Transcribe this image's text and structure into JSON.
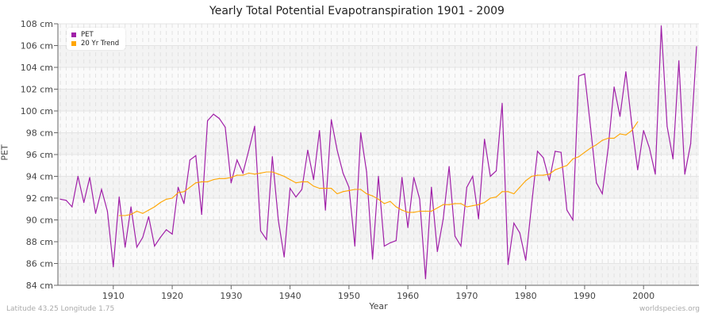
{
  "chart_data": {
    "type": "line",
    "title": "Yearly Total Potential Evapotranspiration 1901 - 2009",
    "xlabel": "Year",
    "ylabel": "PET",
    "y_unit": "cm",
    "ylim": [
      84,
      108
    ],
    "xlim": [
      1901,
      2009
    ],
    "grid": true,
    "legend_position": "top-left",
    "x_ticks": [
      1910,
      1920,
      1930,
      1940,
      1950,
      1960,
      1970,
      1980,
      1990,
      2000
    ],
    "y_ticks": [
      "84 cm",
      "86 cm",
      "88 cm",
      "90 cm",
      "92 cm",
      "94 cm",
      "96 cm",
      "98 cm",
      "100 cm",
      "102 cm",
      "104 cm",
      "106 cm",
      "108 cm"
    ],
    "series": [
      {
        "name": "PET",
        "color": "#a020a8",
        "start_year": 1901,
        "values": [
          91.9,
          91.8,
          91.2,
          94.0,
          91.6,
          93.9,
          90.6,
          92.8,
          90.8,
          85.7,
          92.1,
          87.5,
          91.2,
          87.5,
          88.4,
          90.3,
          87.6,
          88.4,
          89.1,
          88.7,
          93.0,
          91.5,
          95.5,
          95.9,
          90.5,
          99.1,
          99.7,
          99.3,
          98.5,
          93.4,
          95.5,
          94.3,
          96.4,
          98.6,
          89.0,
          88.2,
          95.8,
          90.0,
          86.6,
          92.9,
          92.1,
          92.8,
          96.4,
          93.7,
          98.2,
          90.9,
          99.2,
          96.4,
          94.3,
          93.0,
          87.6,
          98.0,
          94.4,
          86.4,
          94.0,
          87.6,
          87.9,
          88.1,
          93.9,
          89.3,
          93.9,
          91.9,
          84.6,
          93.0,
          87.1,
          90.1,
          94.9,
          88.5,
          87.6,
          93.0,
          94.0,
          90.1,
          97.4,
          94.0,
          94.5,
          100.7,
          85.9,
          89.7,
          88.8,
          86.3,
          91.4,
          96.3,
          95.7,
          93.6,
          96.3,
          96.2,
          90.9,
          90.0,
          103.2,
          103.4,
          98.5,
          93.4,
          92.4,
          96.6,
          102.2,
          99.5,
          103.6,
          98.8,
          94.6,
          98.2,
          96.6,
          94.2,
          107.8,
          98.6,
          95.6,
          104.6,
          94.2,
          97.0,
          105.9
        ]
      },
      {
        "name": "20 Yr Trend",
        "color": "#ffa500",
        "start_year": 1911,
        "values": [
          90.4,
          90.4,
          90.5,
          90.8,
          90.6,
          90.9,
          91.2,
          91.6,
          91.9,
          92.0,
          92.5,
          92.6,
          93.0,
          93.4,
          93.5,
          93.5,
          93.7,
          93.8,
          93.8,
          93.9,
          94.1,
          94.1,
          94.3,
          94.2,
          94.3,
          94.4,
          94.4,
          94.2,
          94.0,
          93.7,
          93.4,
          93.5,
          93.5,
          93.1,
          92.9,
          92.9,
          92.9,
          92.4,
          92.6,
          92.7,
          92.8,
          92.8,
          92.4,
          92.2,
          91.9,
          91.5,
          91.7,
          91.2,
          90.9,
          90.7,
          90.7,
          90.8,
          90.8,
          90.8,
          91.1,
          91.4,
          91.4,
          91.5,
          91.5,
          91.2,
          91.3,
          91.4,
          91.6,
          92.0,
          92.1,
          92.6,
          92.6,
          92.4,
          93.0,
          93.6,
          94.0,
          94.1,
          94.1,
          94.2,
          94.6,
          94.8,
          95.0,
          95.6,
          95.8,
          96.2,
          96.6,
          96.9,
          97.3,
          97.5,
          97.5,
          97.9,
          97.8,
          98.2,
          99.0
        ]
      }
    ]
  },
  "footer": {
    "location": "Latitude 43.25 Longitude 1.75",
    "source": "worldspecies.org"
  }
}
